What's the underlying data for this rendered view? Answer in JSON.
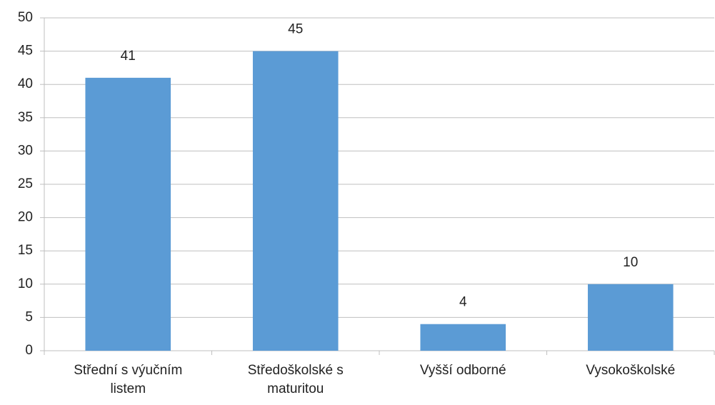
{
  "chart_data": {
    "type": "bar",
    "categories": [
      "Střední s výučním listem",
      "Středoškolské s maturitou",
      "Vyšší odborné",
      "Vysokoškolské"
    ],
    "values": [
      41,
      45,
      4,
      10
    ],
    "color": "#5b9bd5",
    "ylim": [
      0,
      50
    ],
    "yticks": [
      0,
      5,
      10,
      15,
      20,
      25,
      30,
      35,
      40,
      45,
      50
    ],
    "grid": true
  }
}
